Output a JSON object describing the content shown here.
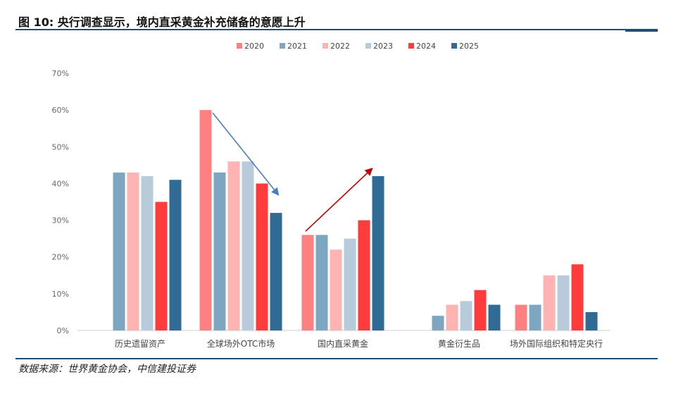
{
  "header": {
    "title": "图 10: 央行调查显示，境内直采黄金补充储备的意愿上升"
  },
  "footer": {
    "source": "数据来源：世界黄金协会，中信建投证券"
  },
  "chart_data": {
    "type": "bar",
    "categories": [
      "历史遗留资产",
      "全球场外OTC市场",
      "国内直采黄金",
      "黄金衍生品",
      "场外国际组织和特定央行"
    ],
    "series": [
      {
        "name": "2020",
        "color": "#ff8080",
        "values": [
          0,
          60,
          26,
          0,
          7
        ]
      },
      {
        "name": "2021",
        "color": "#7ea6c1",
        "values": [
          43,
          43,
          26,
          4,
          7
        ]
      },
      {
        "name": "2022",
        "color": "#ffb3b3",
        "values": [
          43,
          46,
          22,
          7,
          15
        ]
      },
      {
        "name": "2023",
        "color": "#b7cbdb",
        "values": [
          42,
          46,
          25,
          8,
          15
        ]
      },
      {
        "name": "2024",
        "color": "#ff3b3b",
        "values": [
          35,
          40,
          30,
          11,
          18
        ]
      },
      {
        "name": "2025",
        "color": "#2f6b94",
        "values": [
          41,
          32,
          42,
          7,
          5
        ]
      }
    ],
    "ylim": [
      0,
      70
    ],
    "yticks": [
      "0%",
      "10%",
      "20%",
      "30%",
      "40%",
      "50%",
      "60%",
      "70%"
    ],
    "grid": false,
    "legend_position": "top-center",
    "annotations": [
      {
        "type": "arrow",
        "color": "#4a7ec0",
        "from": {
          "category": 1,
          "y": 60
        },
        "to": {
          "category": 1,
          "y": 37
        },
        "direction": "down"
      },
      {
        "type": "arrow",
        "color": "#c00000",
        "from": {
          "category": 2,
          "y": 27
        },
        "to": {
          "category": 2,
          "y": 44
        },
        "direction": "up"
      }
    ]
  }
}
